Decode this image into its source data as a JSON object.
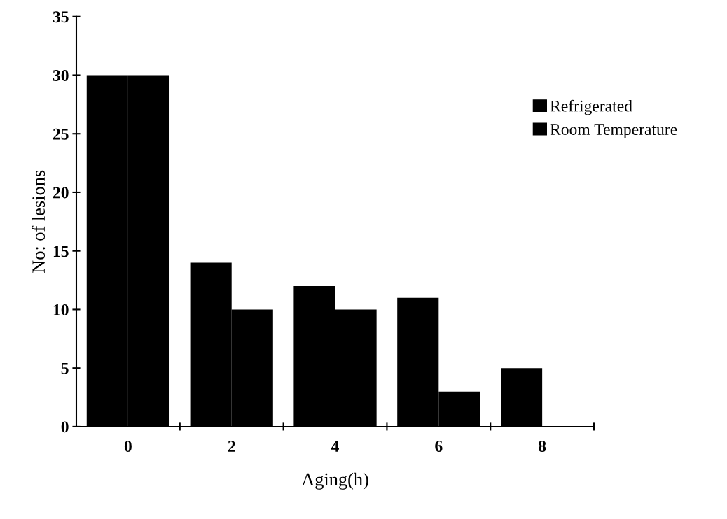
{
  "chart_data": {
    "type": "bar",
    "xlabel": "Aging(h)",
    "ylabel": "No: of lesions",
    "categories": [
      "0",
      "2",
      "4",
      "6",
      "8"
    ],
    "series": [
      {
        "name": "Refrigerated",
        "color": "#000000",
        "values": [
          30,
          14,
          12,
          11,
          5
        ]
      },
      {
        "name": "Room Temperature",
        "color": "#000000",
        "values": [
          30,
          10,
          10,
          3,
          0
        ]
      }
    ],
    "ylim": [
      0,
      35
    ],
    "yticks": [
      0,
      5,
      10,
      15,
      20,
      25,
      30,
      35
    ],
    "grid": false,
    "legend": "right"
  }
}
